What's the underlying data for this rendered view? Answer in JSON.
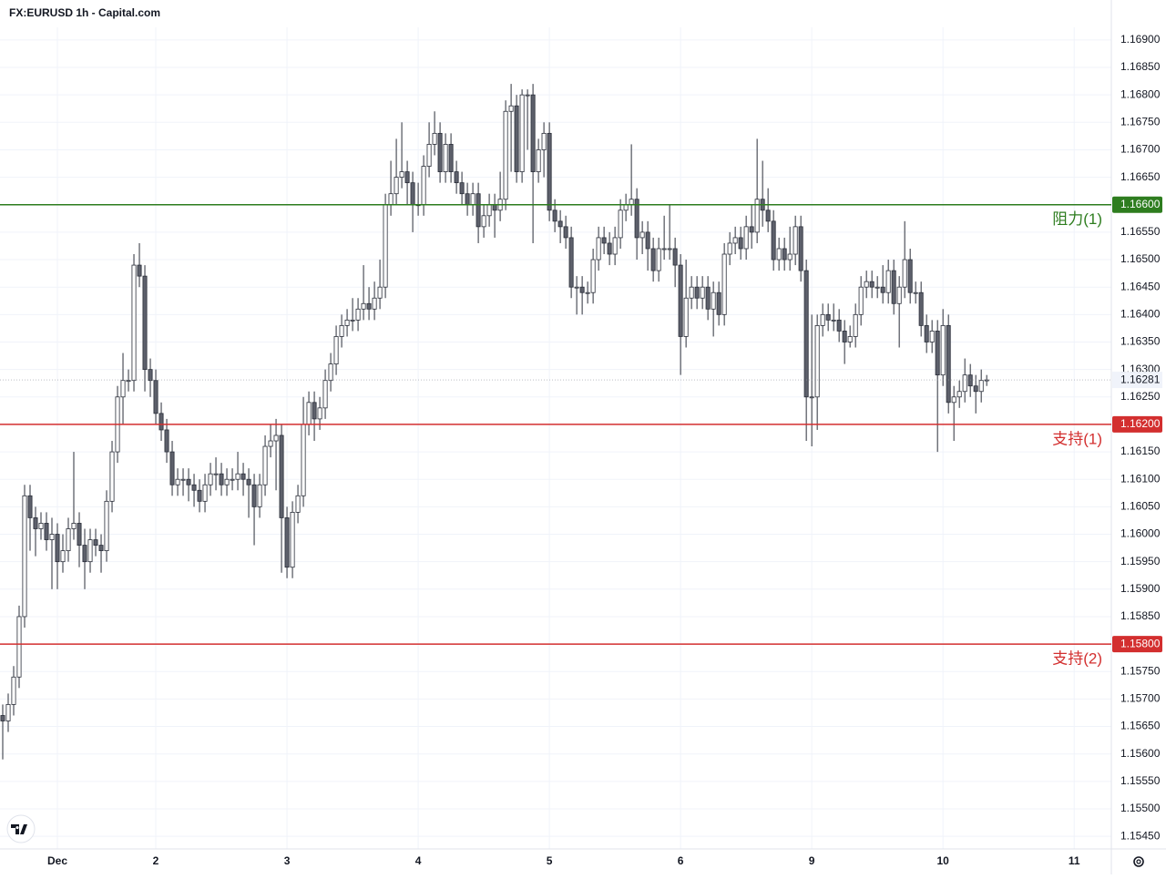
{
  "chart_data": {
    "type": "candlestick",
    "title": "FX:EURUSD 1h - Capital.com",
    "open": [
      1.1567,
      1.1566,
      1.1569,
      1.1574,
      1.1585,
      1.1607,
      1.1603,
      1.1601,
      1.1602,
      1.1599,
      1.16,
      1.1595,
      1.1597,
      1.1601,
      1.1602,
      1.1598,
      1.1595,
      1.1599,
      1.1598,
      1.1597,
      1.1606,
      1.1615,
      1.1625,
      1.1628,
      1.1628,
      1.1649,
      1.1647,
      1.163,
      1.1628,
      1.1622,
      1.1619,
      1.1615,
      1.1609,
      1.161,
      1.161,
      1.1609,
      1.1608,
      1.1606,
      1.1609,
      1.1611,
      1.1611,
      1.1609,
      1.161,
      1.161,
      1.1611,
      1.161,
      1.1609,
      1.1605,
      1.1609,
      1.1616,
      1.1617,
      1.1618,
      1.1603,
      1.1594,
      1.1604,
      1.1607,
      1.162,
      1.1624,
      1.1621,
      1.1623,
      1.1628,
      1.1631,
      1.1636,
      1.1638,
      1.1639,
      1.1639,
      1.1641,
      1.1642,
      1.1641,
      1.1643,
      1.1645,
      1.166,
      1.1662,
      1.1665,
      1.1666,
      1.1664,
      1.166,
      1.166,
      1.1667,
      1.1671,
      1.1673,
      1.1666,
      1.1671,
      1.1666,
      1.1664,
      1.1662,
      1.166,
      1.1662,
      1.1656,
      1.1658,
      1.166,
      1.1659,
      1.1661,
      1.1677,
      1.1678,
      1.1666,
      1.168,
      1.168,
      1.1666,
      1.167,
      1.1673,
      1.1659,
      1.1657,
      1.1656,
      1.1654,
      1.1645,
      1.1645,
      1.1644,
      1.1644,
      1.165,
      1.1654,
      1.1653,
      1.1651,
      1.1654,
      1.1659,
      1.166,
      1.1661,
      1.1654,
      1.1655,
      1.1652,
      1.1648,
      1.1652,
      1.1652,
      1.1652,
      1.1649,
      1.1636,
      1.1643,
      1.1645,
      1.1643,
      1.1645,
      1.1641,
      1.1644,
      1.164,
      1.1651,
      1.1653,
      1.1654,
      1.1652,
      1.1656,
      1.1655,
      1.1661,
      1.1659,
      1.1657,
      1.165,
      1.1652,
      1.165,
      1.1651,
      1.1656,
      1.1648,
      1.1625,
      1.1625,
      1.1638,
      1.164,
      1.1639,
      1.1639,
      1.1637,
      1.1635,
      1.1636,
      1.164,
      1.1645,
      1.1646,
      1.1645,
      1.1645,
      1.1644,
      1.1648,
      1.1642,
      1.1645,
      1.165,
      1.1644,
      1.1644,
      1.1638,
      1.1635,
      1.1637,
      1.1629,
      1.1638,
      1.1624,
      1.1625,
      1.1626,
      1.1629,
      1.1627,
      1.1626,
      1.1628
    ],
    "high": [
      1.1569,
      1.1571,
      1.1576,
      1.1587,
      1.1609,
      1.1609,
      1.1605,
      1.1604,
      1.1604,
      1.1603,
      1.1602,
      1.16,
      1.1603,
      1.1615,
      1.1604,
      1.1601,
      1.1601,
      1.1601,
      1.16,
      1.1608,
      1.1617,
      1.1627,
      1.1633,
      1.163,
      1.1651,
      1.1653,
      1.1649,
      1.1632,
      1.163,
      1.1624,
      1.1621,
      1.1617,
      1.1612,
      1.1612,
      1.1612,
      1.1611,
      1.161,
      1.1611,
      1.1613,
      1.1614,
      1.1613,
      1.1612,
      1.1612,
      1.1615,
      1.1613,
      1.1612,
      1.1611,
      1.1611,
      1.1618,
      1.162,
      1.1621,
      1.162,
      1.1605,
      1.1606,
      1.1609,
      1.1625,
      1.1626,
      1.1626,
      1.1625,
      1.163,
      1.1633,
      1.1638,
      1.164,
      1.1641,
      1.1643,
      1.1643,
      1.1649,
      1.1645,
      1.1646,
      1.165,
      1.1662,
      1.1668,
      1.1672,
      1.1675,
      1.1668,
      1.1666,
      1.1664,
      1.1669,
      1.1675,
      1.1677,
      1.1675,
      1.1673,
      1.1673,
      1.1668,
      1.1666,
      1.1664,
      1.1664,
      1.1664,
      1.166,
      1.1662,
      1.1662,
      1.1666,
      1.1679,
      1.1682,
      1.168,
      1.1681,
      1.1681,
      1.1682,
      1.1672,
      1.1675,
      1.1675,
      1.1661,
      1.1659,
      1.1658,
      1.1656,
      1.1647,
      1.1647,
      1.1646,
      1.1652,
      1.1656,
      1.1656,
      1.1655,
      1.1656,
      1.1661,
      1.1662,
      1.1671,
      1.1663,
      1.1657,
      1.1657,
      1.1654,
      1.1654,
      1.1658,
      1.166,
      1.1654,
      1.1651,
      1.165,
      1.1647,
      1.1647,
      1.1647,
      1.1647,
      1.1646,
      1.1646,
      1.1653,
      1.1655,
      1.1656,
      1.1656,
      1.1658,
      1.166,
      1.1672,
      1.1668,
      1.1663,
      1.1659,
      1.1654,
      1.1654,
      1.1656,
      1.1658,
      1.1658,
      1.165,
      1.164,
      1.164,
      1.1642,
      1.1642,
      1.1642,
      1.1641,
      1.1639,
      1.1638,
      1.1642,
      1.1647,
      1.1648,
      1.1648,
      1.1647,
      1.1649,
      1.165,
      1.165,
      1.1647,
      1.1657,
      1.1652,
      1.1646,
      1.1646,
      1.164,
      1.1639,
      1.1639,
      1.1641,
      1.164,
      1.1627,
      1.1628,
      1.1632,
      1.1631,
      1.1629,
      1.163,
      1.1629
    ],
    "low": [
      1.1559,
      1.1564,
      1.1567,
      1.1572,
      1.1583,
      1.1597,
      1.1596,
      1.1599,
      1.1597,
      1.159,
      1.159,
      1.1593,
      1.1595,
      1.1599,
      1.1594,
      1.159,
      1.1593,
      1.1596,
      1.1593,
      1.1595,
      1.1604,
      1.1613,
      1.162,
      1.1626,
      1.1626,
      1.1645,
      1.1626,
      1.1625,
      1.162,
      1.1617,
      1.1613,
      1.1607,
      1.1607,
      1.1607,
      1.1606,
      1.1605,
      1.1604,
      1.1604,
      1.1607,
      1.1608,
      1.1607,
      1.1607,
      1.1608,
      1.1608,
      1.1607,
      1.1603,
      1.1598,
      1.1603,
      1.1607,
      1.1614,
      1.1608,
      1.1593,
      1.1592,
      1.1592,
      1.1602,
      1.1605,
      1.1618,
      1.1617,
      1.1619,
      1.1621,
      1.1626,
      1.1629,
      1.1634,
      1.1636,
      1.1637,
      1.1637,
      1.1639,
      1.1639,
      1.1639,
      1.1641,
      1.1643,
      1.1658,
      1.166,
      1.1663,
      1.166,
      1.1655,
      1.1658,
      1.1658,
      1.1665,
      1.1669,
      1.1664,
      1.1664,
      1.1664,
      1.1662,
      1.166,
      1.1658,
      1.1658,
      1.1653,
      1.1654,
      1.1656,
      1.1654,
      1.1657,
      1.1659,
      1.1666,
      1.1664,
      1.1664,
      1.167,
      1.1653,
      1.1664,
      1.1665,
      1.1657,
      1.1655,
      1.1653,
      1.1652,
      1.1643,
      1.164,
      1.164,
      1.1642,
      1.1642,
      1.1648,
      1.1651,
      1.1649,
      1.1649,
      1.1652,
      1.1657,
      1.1658,
      1.165,
      1.1651,
      1.1648,
      1.1646,
      1.1646,
      1.165,
      1.165,
      1.1645,
      1.1629,
      1.1634,
      1.1641,
      1.1641,
      1.1641,
      1.1639,
      1.1636,
      1.1638,
      1.1638,
      1.1649,
      1.1651,
      1.165,
      1.165,
      1.1652,
      1.1653,
      1.1656,
      1.1655,
      1.1648,
      1.1648,
      1.1648,
      1.1648,
      1.1649,
      1.1646,
      1.1617,
      1.1616,
      1.1619,
      1.1636,
      1.1637,
      1.1637,
      1.1635,
      1.1631,
      1.1634,
      1.1634,
      1.1638,
      1.1643,
      1.1643,
      1.1643,
      1.1642,
      1.1642,
      1.164,
      1.1634,
      1.1643,
      1.1642,
      1.1642,
      1.1636,
      1.1633,
      1.1633,
      1.1615,
      1.1627,
      1.1622,
      1.1617,
      1.1623,
      1.1624,
      1.1625,
      1.1622,
      1.1624,
      1.1627
    ],
    "close": [
      1.1566,
      1.1569,
      1.1574,
      1.1585,
      1.1607,
      1.1603,
      1.1601,
      1.1602,
      1.1599,
      1.16,
      1.1595,
      1.1597,
      1.1601,
      1.1602,
      1.1598,
      1.1595,
      1.1599,
      1.1598,
      1.1597,
      1.1606,
      1.1615,
      1.1625,
      1.1628,
      1.1628,
      1.1649,
      1.1647,
      1.163,
      1.1628,
      1.1622,
      1.1619,
      1.1615,
      1.1609,
      1.161,
      1.161,
      1.1609,
      1.1608,
      1.1606,
      1.1609,
      1.1611,
      1.1611,
      1.1609,
      1.161,
      1.161,
      1.1611,
      1.161,
      1.1609,
      1.1605,
      1.1609,
      1.1616,
      1.1617,
      1.1618,
      1.1603,
      1.1594,
      1.1604,
      1.1607,
      1.162,
      1.1624,
      1.1621,
      1.1623,
      1.1628,
      1.1631,
      1.1636,
      1.1638,
      1.1639,
      1.1639,
      1.1641,
      1.1642,
      1.1641,
      1.1643,
      1.1645,
      1.166,
      1.1662,
      1.1665,
      1.1666,
      1.1664,
      1.166,
      1.166,
      1.1667,
      1.1671,
      1.1673,
      1.1666,
      1.1671,
      1.1666,
      1.1664,
      1.1662,
      1.166,
      1.1662,
      1.1656,
      1.1658,
      1.166,
      1.1659,
      1.1661,
      1.1677,
      1.1678,
      1.1666,
      1.168,
      1.168,
      1.1666,
      1.167,
      1.1673,
      1.1659,
      1.1657,
      1.1656,
      1.1654,
      1.1645,
      1.1645,
      1.1644,
      1.1644,
      1.165,
      1.1654,
      1.1653,
      1.1651,
      1.1654,
      1.1659,
      1.166,
      1.1661,
      1.1654,
      1.1655,
      1.1652,
      1.1648,
      1.1652,
      1.1652,
      1.1652,
      1.1649,
      1.1636,
      1.1643,
      1.1645,
      1.1643,
      1.1645,
      1.1641,
      1.1644,
      1.164,
      1.1651,
      1.1653,
      1.1654,
      1.1652,
      1.1656,
      1.1655,
      1.1661,
      1.1659,
      1.1657,
      1.165,
      1.1652,
      1.165,
      1.1651,
      1.1656,
      1.1648,
      1.1625,
      1.1625,
      1.1638,
      1.164,
      1.1639,
      1.1639,
      1.1637,
      1.1635,
      1.1636,
      1.164,
      1.1645,
      1.1646,
      1.1645,
      1.1645,
      1.1644,
      1.1648,
      1.1642,
      1.1645,
      1.165,
      1.1644,
      1.1644,
      1.1638,
      1.1635,
      1.1637,
      1.1629,
      1.1638,
      1.1624,
      1.1625,
      1.1626,
      1.1629,
      1.1627,
      1.1626,
      1.1628,
      1.16281
    ],
    "up_color": "#ffffff",
    "down_color": "#5d606b",
    "wick_color": "#2a2e39",
    "xlim": [
      -0.5,
      202.8
    ],
    "xticks": [
      {
        "value": 10,
        "label": "Dec"
      },
      {
        "value": 28,
        "label": "2"
      },
      {
        "value": 52,
        "label": "3"
      },
      {
        "value": 76,
        "label": "4"
      },
      {
        "value": 100,
        "label": "5"
      },
      {
        "value": 124,
        "label": "6"
      },
      {
        "value": 148,
        "label": "9"
      },
      {
        "value": 172,
        "label": "10"
      },
      {
        "value": 196,
        "label": "11"
      }
    ],
    "ylim": [
      1.15427,
      1.16923
    ],
    "yticks": [
      {
        "value": 1.1545,
        "label": "1.15450"
      },
      {
        "value": 1.155,
        "label": "1.15500"
      },
      {
        "value": 1.1555,
        "label": "1.15550"
      },
      {
        "value": 1.156,
        "label": "1.15600"
      },
      {
        "value": 1.1565,
        "label": "1.15650"
      },
      {
        "value": 1.157,
        "label": "1.15700"
      },
      {
        "value": 1.1575,
        "label": "1.15750"
      },
      {
        "value": 1.158,
        "label": "1.15800"
      },
      {
        "value": 1.1585,
        "label": "1.15850"
      },
      {
        "value": 1.159,
        "label": "1.15900"
      },
      {
        "value": 1.1595,
        "label": "1.15950"
      },
      {
        "value": 1.16,
        "label": "1.16000"
      },
      {
        "value": 1.1605,
        "label": "1.16050"
      },
      {
        "value": 1.161,
        "label": "1.16100"
      },
      {
        "value": 1.1615,
        "label": "1.16150"
      },
      {
        "value": 1.162,
        "label": "1.16200"
      },
      {
        "value": 1.1625,
        "label": "1.16250"
      },
      {
        "value": 1.163,
        "label": "1.16300"
      },
      {
        "value": 1.1635,
        "label": "1.16350"
      },
      {
        "value": 1.164,
        "label": "1.16400"
      },
      {
        "value": 1.1645,
        "label": "1.16450"
      },
      {
        "value": 1.165,
        "label": "1.16500"
      },
      {
        "value": 1.1655,
        "label": "1.16550"
      },
      {
        "value": 1.166,
        "label": "1.16600"
      },
      {
        "value": 1.1665,
        "label": "1.16650"
      },
      {
        "value": 1.167,
        "label": "1.16700"
      },
      {
        "value": 1.1675,
        "label": "1.16750"
      },
      {
        "value": 1.168,
        "label": "1.16800"
      },
      {
        "value": 1.1685,
        "label": "1.16850"
      },
      {
        "value": 1.169,
        "label": "1.16900"
      }
    ],
    "grid": true,
    "levels": {
      "names": [
        "阻力(1)",
        "支持(1)",
        "支持(2)"
      ],
      "values": [
        1.166,
        1.162,
        1.158
      ],
      "value_labels": [
        "1.16600",
        "1.16200",
        "1.15800"
      ],
      "colors": [
        "#2e7d1f",
        "#d32f2f",
        "#d32f2f"
      ]
    }
  }
}
